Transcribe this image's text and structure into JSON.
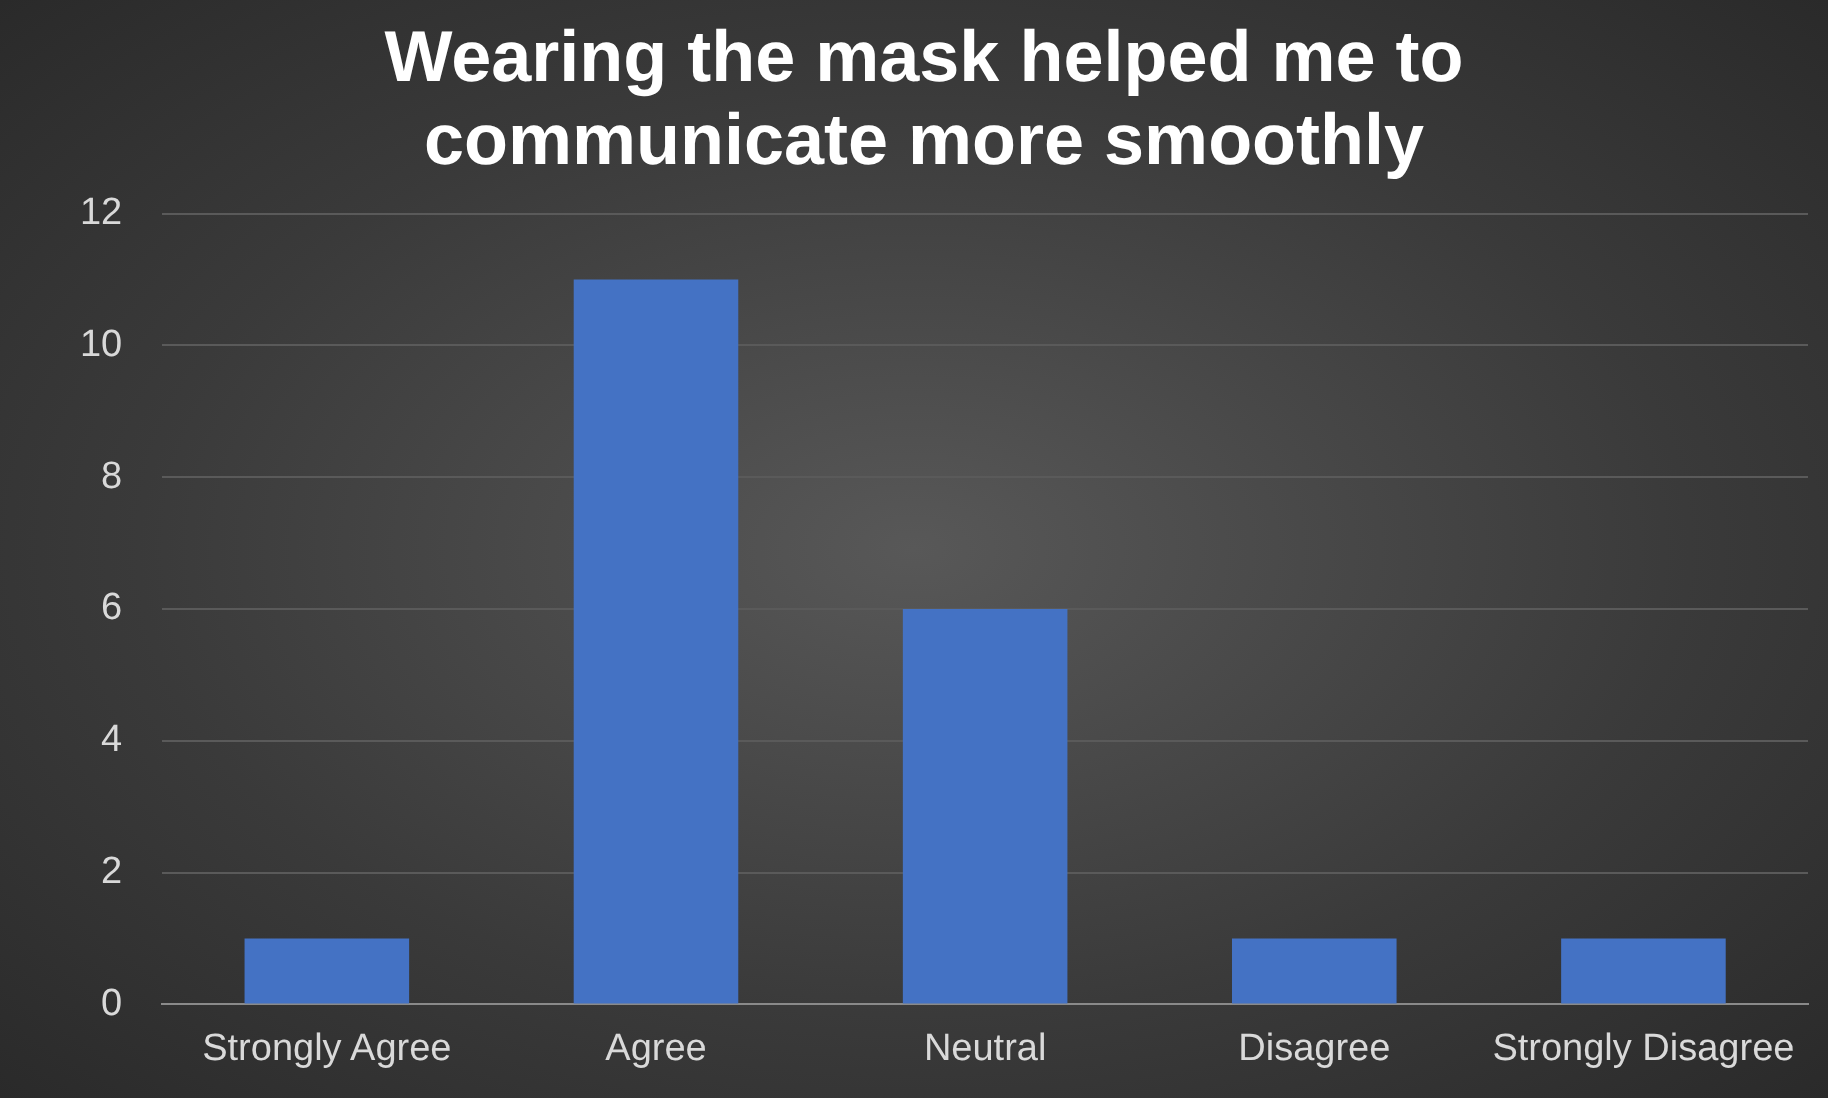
{
  "chart_data": {
    "type": "bar",
    "title": "Wearing the mask helped me to communicate more smoothly",
    "categories": [
      "Strongly Agree",
      "Agree",
      "Neutral",
      "Disagree",
      "Strongly Disagree"
    ],
    "values": [
      1,
      11,
      6,
      1,
      1
    ],
    "color": "#4472c4",
    "ylim": [
      0,
      12
    ],
    "yticks": [
      0,
      2,
      4,
      6,
      8,
      10,
      12
    ],
    "grid": "y",
    "legend": false
  }
}
